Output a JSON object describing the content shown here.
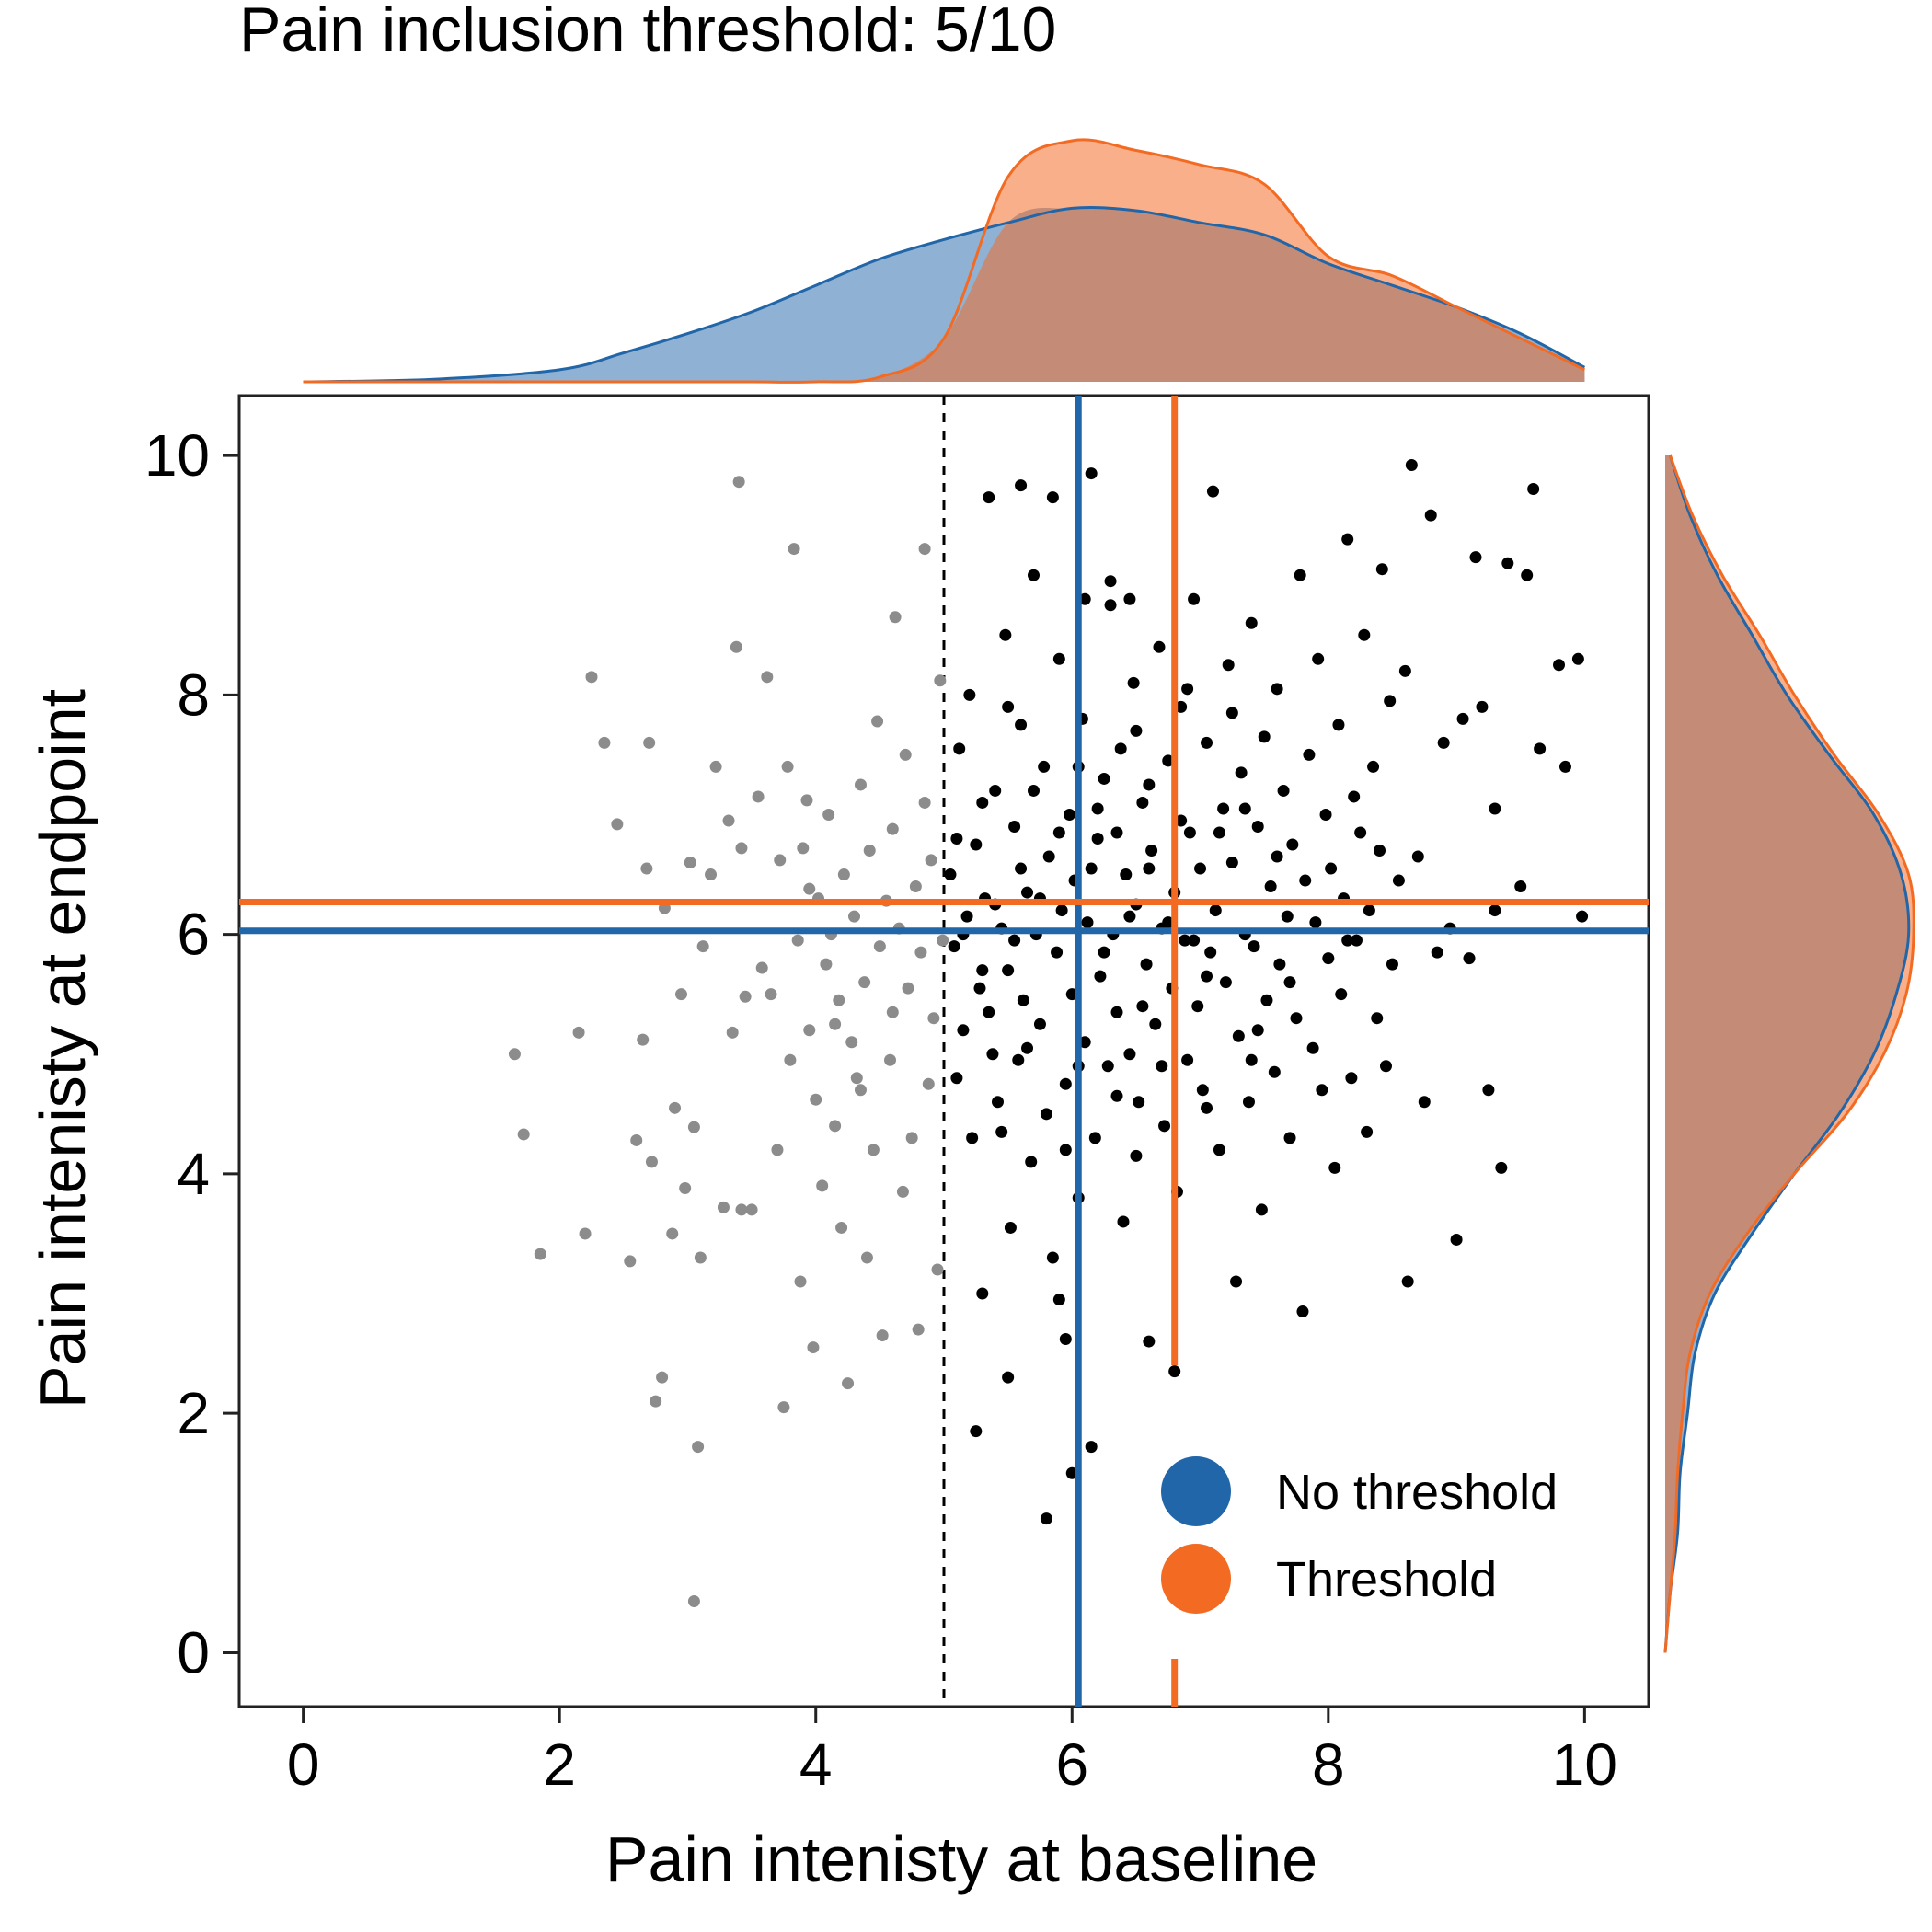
{
  "chart_data": {
    "type": "scatter",
    "title": "Pain inclusion threshold: 5/10",
    "xlabel": "Pain intenisty at baseline",
    "ylabel": "Pain intenisty at endpoint",
    "xlim": [
      -0.5,
      10.5
    ],
    "ylim": [
      -0.45,
      10.5
    ],
    "xticks": [
      0,
      2,
      4,
      6,
      8,
      10
    ],
    "yticks": [
      0,
      2,
      4,
      6,
      8,
      10
    ],
    "threshold": 5,
    "legend": {
      "position": "lower-right",
      "entries": [
        {
          "label": "No threshold",
          "color": "#2166a8"
        },
        {
          "label": "Threshold",
          "color": "#f36b23"
        }
      ]
    },
    "colors": {
      "excluded_points": "#8c8c8c",
      "included_points": "#000000",
      "no_threshold": "#2166a8",
      "threshold": "#f36b23",
      "no_threshold_fill": "#8fb2d4",
      "threshold_fill": "#f9b08a",
      "overlap_fill": "#c48c77",
      "threshold_line": "#000000"
    },
    "series": [
      {
        "name": "No threshold",
        "mean_baseline": 6.05,
        "mean_endpoint": 6.03
      },
      {
        "name": "Threshold",
        "mean_baseline": 6.8,
        "mean_endpoint": 6.27
      }
    ],
    "marginal_x_density": {
      "x": [
        0,
        1,
        2,
        2.5,
        3,
        3.5,
        4,
        4.5,
        5,
        5.5,
        6,
        6.5,
        7,
        7.5,
        8,
        8.5,
        9,
        9.5,
        10
      ],
      "no_threshold": [
        0,
        0.01,
        0.05,
        0.12,
        0.2,
        0.29,
        0.4,
        0.51,
        0.59,
        0.66,
        0.72,
        0.71,
        0.66,
        0.61,
        0.49,
        0.4,
        0.31,
        0.2,
        0.06
      ],
      "threshold": [
        0,
        0,
        0,
        0,
        0,
        0,
        0,
        0.02,
        0.18,
        0.85,
        1.0,
        0.96,
        0.9,
        0.82,
        0.52,
        0.44,
        0.31,
        0.18,
        0.05
      ]
    },
    "marginal_y_density": {
      "y": [
        0,
        0.5,
        1,
        1.5,
        2,
        2.5,
        3,
        3.5,
        4,
        4.5,
        5,
        5.5,
        6,
        6.5,
        7,
        7.5,
        8,
        8.5,
        9,
        9.5,
        10
      ],
      "no_threshold": [
        0,
        0.02,
        0.05,
        0.06,
        0.09,
        0.12,
        0.2,
        0.35,
        0.52,
        0.7,
        0.84,
        0.93,
        0.98,
        0.95,
        0.84,
        0.66,
        0.49,
        0.35,
        0.21,
        0.1,
        0.02
      ],
      "threshold": [
        0,
        0.02,
        0.04,
        0.05,
        0.07,
        0.1,
        0.18,
        0.33,
        0.52,
        0.73,
        0.88,
        0.97,
        1.0,
        0.98,
        0.86,
        0.68,
        0.52,
        0.38,
        0.23,
        0.11,
        0.02
      ]
    },
    "points_excluded": [
      [
        1.65,
        5.0
      ],
      [
        1.72,
        4.33
      ],
      [
        1.85,
        3.33
      ],
      [
        2.15,
        5.18
      ],
      [
        2.2,
        3.5
      ],
      [
        2.25,
        8.15
      ],
      [
        2.35,
        7.6
      ],
      [
        2.45,
        6.92
      ],
      [
        2.55,
        3.27
      ],
      [
        2.6,
        4.28
      ],
      [
        2.65,
        5.12
      ],
      [
        2.68,
        6.55
      ],
      [
        2.7,
        7.6
      ],
      [
        2.72,
        4.1
      ],
      [
        2.75,
        2.1
      ],
      [
        2.8,
        2.3
      ],
      [
        2.82,
        6.22
      ],
      [
        2.88,
        3.5
      ],
      [
        2.9,
        4.55
      ],
      [
        2.95,
        5.5
      ],
      [
        2.98,
        3.88
      ],
      [
        3.02,
        6.6
      ],
      [
        3.05,
        4.39
      ],
      [
        3.08,
        1.72
      ],
      [
        3.1,
        3.3
      ],
      [
        3.12,
        5.9
      ],
      [
        3.18,
        6.5
      ],
      [
        3.22,
        7.4
      ],
      [
        3.28,
        3.72
      ],
      [
        3.32,
        6.95
      ],
      [
        3.35,
        5.18
      ],
      [
        3.38,
        8.4
      ],
      [
        3.42,
        6.72
      ],
      [
        3.45,
        5.48
      ],
      [
        3.5,
        3.7
      ],
      [
        3.55,
        7.15
      ],
      [
        3.58,
        5.72
      ],
      [
        3.62,
        8.15
      ],
      [
        3.65,
        5.5
      ],
      [
        3.7,
        4.2
      ],
      [
        3.72,
        6.62
      ],
      [
        3.75,
        2.05
      ],
      [
        3.78,
        7.4
      ],
      [
        3.8,
        4.95
      ],
      [
        3.83,
        9.22
      ],
      [
        3.86,
        5.95
      ],
      [
        3.88,
        3.1
      ],
      [
        3.9,
        6.72
      ],
      [
        3.93,
        7.12
      ],
      [
        3.95,
        5.2
      ],
      [
        3.98,
        2.55
      ],
      [
        4.0,
        4.62
      ],
      [
        4.02,
        6.3
      ],
      [
        4.05,
        3.9
      ],
      [
        4.08,
        5.75
      ],
      [
        4.1,
        7.0
      ],
      [
        4.12,
        6.0
      ],
      [
        4.15,
        4.4
      ],
      [
        4.18,
        5.45
      ],
      [
        4.2,
        3.55
      ],
      [
        4.22,
        6.5
      ],
      [
        4.25,
        2.25
      ],
      [
        4.28,
        5.1
      ],
      [
        4.3,
        6.15
      ],
      [
        4.32,
        4.8
      ],
      [
        4.35,
        7.25
      ],
      [
        4.38,
        5.6
      ],
      [
        4.4,
        3.3
      ],
      [
        4.42,
        6.7
      ],
      [
        4.45,
        4.2
      ],
      [
        4.48,
        7.78
      ],
      [
        4.5,
        5.9
      ],
      [
        4.52,
        2.65
      ],
      [
        4.55,
        6.28
      ],
      [
        4.58,
        4.95
      ],
      [
        4.6,
        5.35
      ],
      [
        4.62,
        8.65
      ],
      [
        4.65,
        6.05
      ],
      [
        4.68,
        3.85
      ],
      [
        4.7,
        7.5
      ],
      [
        4.72,
        5.55
      ],
      [
        4.75,
        4.3
      ],
      [
        4.78,
        6.4
      ],
      [
        4.8,
        2.7
      ],
      [
        4.82,
        5.85
      ],
      [
        4.85,
        7.1
      ],
      [
        4.88,
        4.75
      ],
      [
        4.9,
        6.62
      ],
      [
        4.92,
        5.3
      ],
      [
        4.95,
        3.2
      ],
      [
        4.97,
        8.12
      ],
      [
        4.99,
        5.95
      ],
      [
        3.4,
        9.78
      ],
      [
        4.85,
        9.22
      ],
      [
        3.05,
        0.43
      ],
      [
        3.42,
        3.7
      ],
      [
        3.95,
        6.38
      ],
      [
        4.35,
        4.7
      ],
      [
        4.15,
        5.25
      ],
      [
        4.6,
        6.88
      ]
    ],
    "points_included": [
      [
        5.05,
        6.5
      ],
      [
        5.08,
        5.9
      ],
      [
        5.1,
        4.8
      ],
      [
        5.12,
        7.55
      ],
      [
        5.15,
        5.2
      ],
      [
        5.18,
        6.15
      ],
      [
        5.2,
        8.0
      ],
      [
        5.22,
        4.3
      ],
      [
        5.25,
        6.75
      ],
      [
        5.28,
        5.55
      ],
      [
        5.3,
        3.0
      ],
      [
        5.32,
        6.3
      ],
      [
        5.35,
        9.65
      ],
      [
        5.38,
        5.0
      ],
      [
        5.4,
        7.2
      ],
      [
        5.42,
        4.6
      ],
      [
        5.45,
        6.05
      ],
      [
        5.48,
        8.5
      ],
      [
        5.5,
        5.7
      ],
      [
        5.52,
        3.55
      ],
      [
        5.55,
        6.9
      ],
      [
        5.58,
        4.95
      ],
      [
        5.6,
        7.75
      ],
      [
        5.62,
        5.45
      ],
      [
        5.65,
        6.35
      ],
      [
        5.68,
        4.1
      ],
      [
        5.7,
        9.0
      ],
      [
        5.72,
        6.0
      ],
      [
        5.75,
        5.25
      ],
      [
        5.78,
        7.4
      ],
      [
        5.8,
        4.5
      ],
      [
        5.82,
        6.65
      ],
      [
        5.85,
        3.3
      ],
      [
        5.88,
        5.85
      ],
      [
        5.9,
        8.3
      ],
      [
        5.92,
        6.2
      ],
      [
        5.95,
        4.75
      ],
      [
        5.98,
        7.0
      ],
      [
        6.0,
        5.5
      ],
      [
        6.02,
        6.45
      ],
      [
        6.05,
        3.8
      ],
      [
        6.08,
        7.8
      ],
      [
        6.1,
        5.1
      ],
      [
        6.12,
        6.1
      ],
      [
        6.15,
        9.85
      ],
      [
        6.18,
        4.3
      ],
      [
        6.2,
        6.8
      ],
      [
        6.22,
        5.65
      ],
      [
        6.25,
        7.3
      ],
      [
        6.28,
        4.9
      ],
      [
        6.3,
        8.75
      ],
      [
        6.32,
        6.0
      ],
      [
        6.35,
        5.35
      ],
      [
        6.38,
        7.55
      ],
      [
        6.4,
        3.6
      ],
      [
        6.42,
        6.5
      ],
      [
        6.45,
        5.0
      ],
      [
        6.48,
        8.1
      ],
      [
        6.5,
        6.25
      ],
      [
        6.52,
        4.6
      ],
      [
        6.55,
        7.1
      ],
      [
        6.58,
        5.75
      ],
      [
        6.6,
        2.6
      ],
      [
        6.62,
        6.7
      ],
      [
        6.65,
        5.25
      ],
      [
        6.68,
        8.4
      ],
      [
        6.7,
        6.05
      ],
      [
        6.72,
        4.4
      ],
      [
        6.75,
        7.45
      ],
      [
        6.78,
        5.55
      ],
      [
        6.8,
        6.35
      ],
      [
        6.82,
        3.85
      ],
      [
        6.85,
        7.9
      ],
      [
        6.88,
        5.95
      ],
      [
        6.9,
        4.95
      ],
      [
        6.92,
        6.85
      ],
      [
        6.95,
        8.8
      ],
      [
        6.98,
        5.4
      ],
      [
        7.0,
        6.55
      ],
      [
        7.02,
        4.7
      ],
      [
        7.05,
        7.6
      ],
      [
        7.08,
        5.85
      ],
      [
        7.1,
        9.7
      ],
      [
        7.12,
        6.2
      ],
      [
        7.15,
        4.2
      ],
      [
        7.18,
        7.05
      ],
      [
        7.2,
        5.6
      ],
      [
        7.22,
        8.25
      ],
      [
        7.25,
        6.6
      ],
      [
        7.28,
        3.1
      ],
      [
        7.3,
        5.15
      ],
      [
        7.32,
        7.35
      ],
      [
        7.35,
        6.0
      ],
      [
        7.38,
        4.6
      ],
      [
        7.4,
        8.6
      ],
      [
        7.42,
        5.9
      ],
      [
        7.45,
        6.9
      ],
      [
        7.48,
        3.7
      ],
      [
        7.5,
        7.65
      ],
      [
        7.52,
        5.45
      ],
      [
        7.55,
        6.4
      ],
      [
        7.58,
        4.85
      ],
      [
        7.6,
        8.05
      ],
      [
        7.62,
        5.75
      ],
      [
        7.65,
        7.2
      ],
      [
        7.68,
        6.15
      ],
      [
        7.7,
        4.3
      ],
      [
        7.72,
        6.75
      ],
      [
        7.75,
        5.3
      ],
      [
        7.78,
        9.0
      ],
      [
        7.8,
        2.85
      ],
      [
        7.82,
        6.45
      ],
      [
        7.85,
        7.5
      ],
      [
        7.88,
        5.05
      ],
      [
        7.9,
        6.1
      ],
      [
        7.92,
        8.3
      ],
      [
        7.95,
        4.7
      ],
      [
        7.98,
        7.0
      ],
      [
        8.0,
        5.8
      ],
      [
        8.02,
        6.55
      ],
      [
        8.05,
        4.05
      ],
      [
        8.08,
        7.75
      ],
      [
        8.1,
        5.5
      ],
      [
        8.12,
        6.3
      ],
      [
        8.15,
        9.3
      ],
      [
        8.18,
        4.8
      ],
      [
        8.2,
        7.15
      ],
      [
        8.22,
        5.95
      ],
      [
        8.25,
        6.85
      ],
      [
        8.28,
        8.5
      ],
      [
        8.3,
        4.35
      ],
      [
        8.32,
        6.2
      ],
      [
        8.35,
        7.4
      ],
      [
        8.38,
        5.3
      ],
      [
        8.4,
        6.7
      ],
      [
        8.42,
        9.05
      ],
      [
        8.45,
        4.9
      ],
      [
        8.48,
        7.95
      ],
      [
        8.5,
        5.75
      ],
      [
        8.55,
        6.45
      ],
      [
        8.6,
        8.2
      ],
      [
        8.62,
        3.1
      ],
      [
        8.65,
        9.92
      ],
      [
        8.7,
        6.65
      ],
      [
        8.75,
        4.6
      ],
      [
        8.8,
        9.5
      ],
      [
        8.85,
        5.85
      ],
      [
        8.9,
        7.6
      ],
      [
        8.95,
        6.05
      ],
      [
        9.0,
        3.45
      ],
      [
        9.05,
        7.8
      ],
      [
        9.1,
        5.8
      ],
      [
        9.15,
        9.15
      ],
      [
        9.2,
        7.9
      ],
      [
        9.25,
        4.7
      ],
      [
        9.3,
        6.2
      ],
      [
        9.35,
        4.05
      ],
      [
        9.4,
        9.1
      ],
      [
        9.5,
        6.4
      ],
      [
        9.55,
        9.0
      ],
      [
        9.6,
        9.72
      ],
      [
        9.65,
        7.55
      ],
      [
        9.8,
        8.25
      ],
      [
        9.85,
        7.4
      ],
      [
        9.95,
        8.3
      ],
      [
        9.98,
        6.15
      ],
      [
        9.3,
        7.05
      ],
      [
        5.25,
        1.85
      ],
      [
        5.5,
        2.3
      ],
      [
        5.8,
        1.12
      ],
      [
        5.9,
        2.95
      ],
      [
        6.0,
        1.5
      ],
      [
        6.15,
        1.72
      ],
      [
        5.95,
        2.62
      ],
      [
        6.8,
        2.35
      ],
      [
        5.6,
        9.75
      ],
      [
        5.85,
        9.65
      ],
      [
        6.1,
        8.8
      ],
      [
        6.3,
        8.95
      ],
      [
        6.45,
        8.8
      ],
      [
        5.5,
        7.9
      ],
      [
        5.7,
        7.2
      ],
      [
        6.15,
        6.55
      ],
      [
        6.35,
        6.85
      ],
      [
        6.6,
        6.55
      ],
      [
        5.4,
        6.25
      ],
      [
        5.15,
        6.0
      ],
      [
        5.3,
        5.7
      ],
      [
        5.55,
        5.95
      ],
      [
        6.25,
        5.85
      ],
      [
        6.55,
        5.4
      ],
      [
        6.95,
        5.95
      ],
      [
        7.15,
        6.85
      ],
      [
        7.35,
        7.05
      ],
      [
        7.6,
        6.65
      ],
      [
        7.25,
        7.85
      ],
      [
        6.9,
        8.05
      ],
      [
        6.5,
        7.7
      ],
      [
        6.05,
        7.4
      ],
      [
        5.75,
        6.3
      ],
      [
        6.45,
        6.15
      ],
      [
        6.75,
        6.1
      ],
      [
        7.05,
        5.65
      ],
      [
        7.45,
        5.2
      ],
      [
        7.7,
        5.6
      ],
      [
        8.15,
        5.95
      ],
      [
        5.35,
        5.35
      ],
      [
        5.65,
        5.05
      ],
      [
        6.05,
        4.9
      ],
      [
        6.35,
        4.65
      ],
      [
        6.7,
        4.9
      ],
      [
        7.05,
        4.55
      ],
      [
        7.4,
        4.95
      ],
      [
        5.45,
        4.35
      ],
      [
        5.95,
        4.2
      ],
      [
        6.5,
        4.15
      ],
      [
        5.1,
        6.8
      ],
      [
        5.3,
        7.1
      ],
      [
        5.6,
        6.55
      ],
      [
        5.9,
        6.85
      ],
      [
        6.2,
        7.05
      ],
      [
        6.6,
        7.25
      ],
      [
        6.85,
        6.95
      ]
    ]
  }
}
